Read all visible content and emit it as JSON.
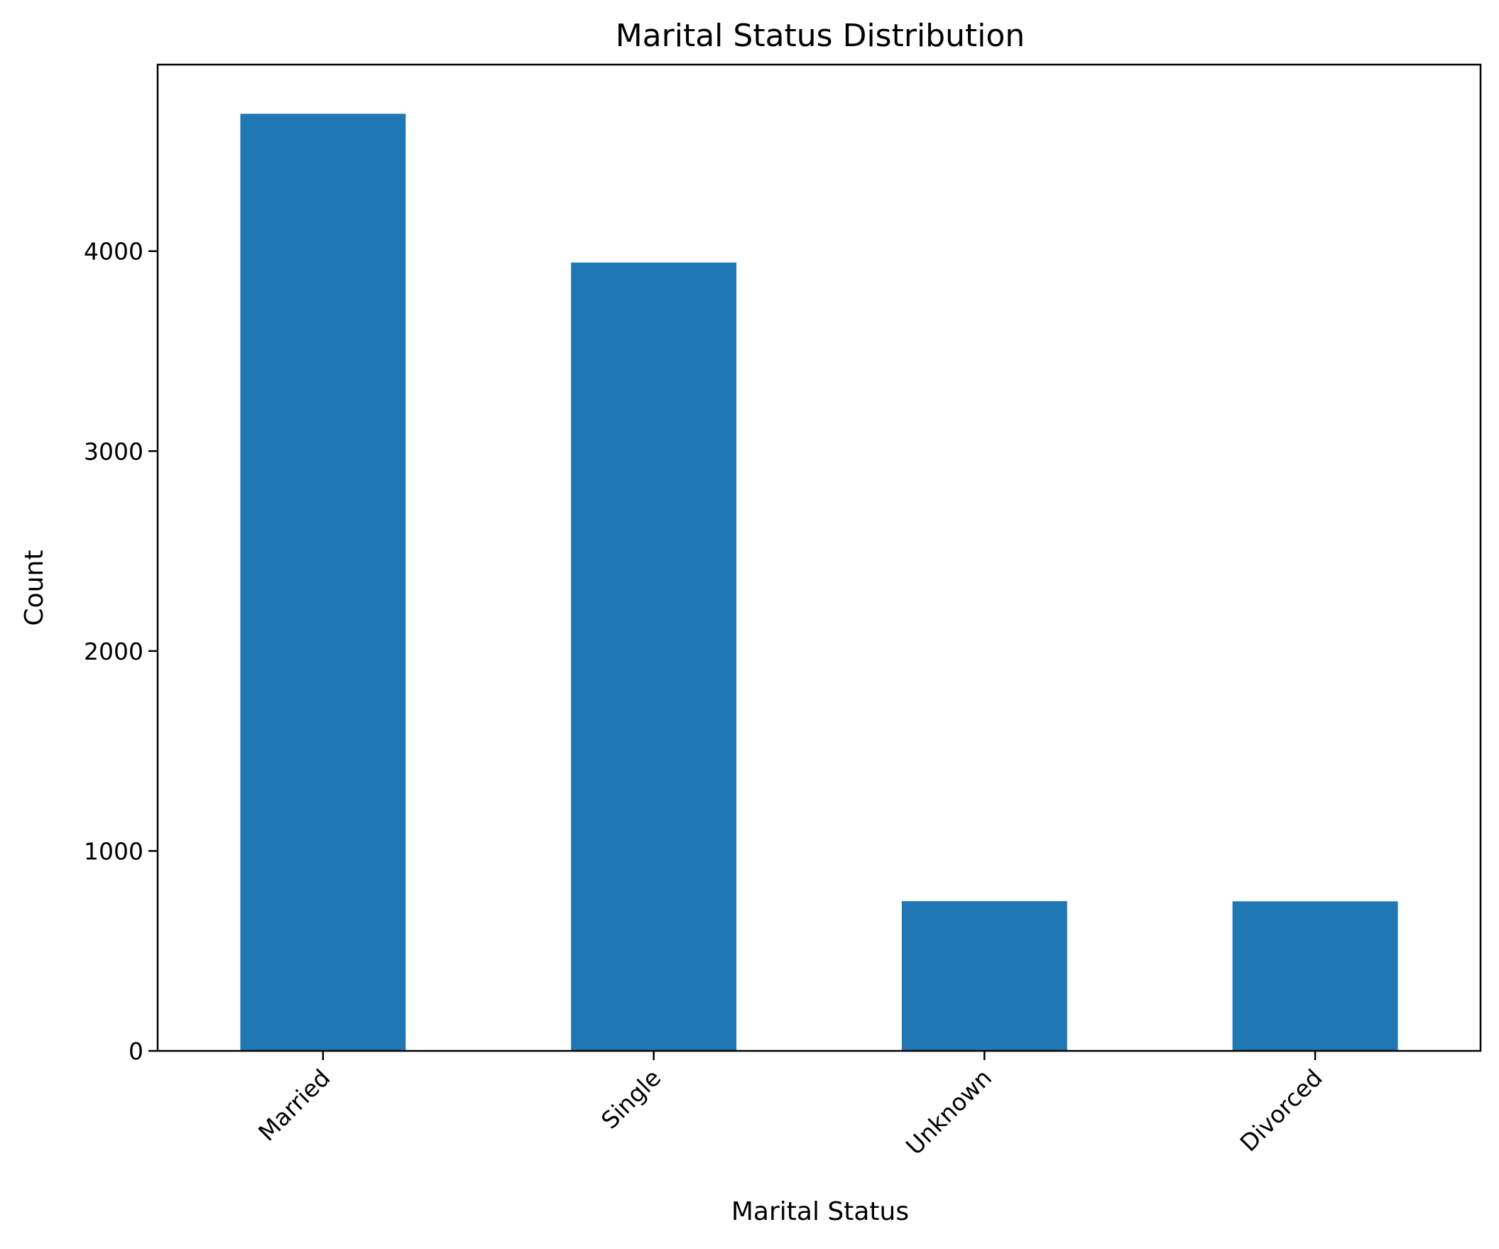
{
  "chart_data": {
    "type": "bar",
    "title": "Marital Status Distribution",
    "xlabel": "Marital Status",
    "ylabel": "Count",
    "categories": [
      "Married",
      "Single",
      "Unknown",
      "Divorced"
    ],
    "values": [
      4687,
      3943,
      749,
      748
    ],
    "ylim": [
      0,
      4933
    ],
    "yticks": [
      0,
      1000,
      2000,
      3000,
      4000
    ],
    "bar_color": "#1f77b4",
    "grid": false,
    "legend": false
  }
}
